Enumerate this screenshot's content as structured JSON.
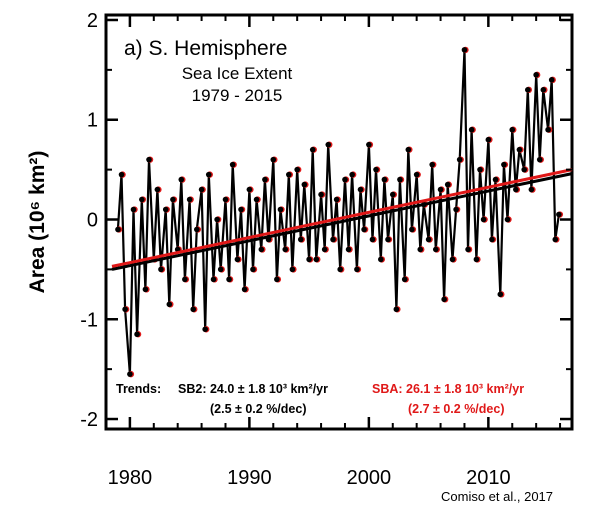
{
  "chart_data": {
    "type": "line",
    "panel_label": "a) S. Hemisphere",
    "title_line1": "Sea Ice Extent",
    "title_line2": "1979 - 2015",
    "ylabel": "Area (10⁶ km²)",
    "xlim": [
      1978,
      2017
    ],
    "ylim": [
      -2.1,
      2.05
    ],
    "x_ticks": [
      1980,
      1990,
      2000,
      2010
    ],
    "y_ticks": [
      2,
      1,
      0,
      -1,
      -2
    ],
    "colors": {
      "sb2": "#000000",
      "sba": "#e01818"
    },
    "series": [
      {
        "name": "SB2",
        "color": "#000000",
        "trend_line": {
          "x": [
            1978.5,
            2017.0
          ],
          "y": [
            -0.5,
            0.46
          ]
        },
        "trend_label": "SB2: 24.0 ± 1.8 10³ km²/yr",
        "trend_pct": "(2.5 ± 0.2 %/dec)"
      },
      {
        "name": "SBA",
        "color": "#e01818",
        "trend_line": {
          "x": [
            1978.5,
            2017.0
          ],
          "y": [
            -0.47,
            0.5
          ]
        },
        "trend_label": "SBA: 26.1 ± 1.8 10³ km²/yr",
        "trend_pct": "(2.7 ± 0.2 %/dec)"
      }
    ],
    "trends_heading": "Trends:",
    "anomalies_sample": {
      "x": [
        1979.0,
        1979.3,
        1979.6,
        1980.0,
        1980.3,
        1980.6,
        1981.0,
        1981.3,
        1981.6,
        1982.0,
        1982.3,
        1982.6,
        1983.0,
        1983.3,
        1983.6,
        1984.0,
        1984.3,
        1984.6,
        1985.0,
        1985.3,
        1985.6,
        1986.0,
        1986.3,
        1986.6,
        1987.0,
        1987.3,
        1987.6,
        1988.0,
        1988.3,
        1988.6,
        1989.0,
        1989.3,
        1989.6,
        1990.0,
        1990.3,
        1990.6,
        1991.0,
        1991.3,
        1991.6,
        1992.0,
        1992.3,
        1992.6,
        1993.0,
        1993.3,
        1993.6,
        1994.0,
        1994.3,
        1994.6,
        1995.0,
        1995.3,
        1995.6,
        1996.0,
        1996.3,
        1996.6,
        1997.0,
        1997.3,
        1997.6,
        1998.0,
        1998.3,
        1998.6,
        1999.0,
        1999.3,
        1999.6,
        2000.0,
        2000.3,
        2000.6,
        2001.0,
        2001.3,
        2001.6,
        2002.0,
        2002.3,
        2002.6,
        2003.0,
        2003.3,
        2003.6,
        2004.0,
        2004.3,
        2004.6,
        2005.0,
        2005.3,
        2005.6,
        2006.0,
        2006.3,
        2006.6,
        2007.0,
        2007.3,
        2007.6,
        2008.0,
        2008.3,
        2008.6,
        2009.0,
        2009.3,
        2009.6,
        2010.0,
        2010.3,
        2010.6,
        2011.0,
        2011.3,
        2011.6,
        2012.0,
        2012.3,
        2012.6,
        2013.0,
        2013.3,
        2013.6,
        2014.0,
        2014.3,
        2014.6,
        2015.0,
        2015.3,
        2015.6,
        2015.9
      ],
      "y": [
        -0.1,
        0.45,
        -0.9,
        -1.55,
        0.1,
        -1.15,
        0.2,
        -0.7,
        0.6,
        -0.4,
        0.3,
        -0.5,
        0.1,
        -0.85,
        0.2,
        -0.3,
        0.4,
        -0.6,
        0.2,
        -0.9,
        -0.1,
        0.3,
        -1.1,
        0.45,
        -0.6,
        0.0,
        -0.5,
        0.2,
        -0.6,
        0.55,
        -0.4,
        0.1,
        -0.7,
        0.3,
        -0.5,
        0.2,
        -0.3,
        0.4,
        -0.2,
        0.6,
        -0.6,
        0.1,
        -0.3,
        0.45,
        -0.5,
        0.5,
        -0.2,
        0.35,
        -0.4,
        0.7,
        -0.4,
        0.25,
        -0.3,
        0.75,
        -0.2,
        0.2,
        -0.5,
        0.4,
        -0.3,
        0.45,
        -0.5,
        0.3,
        -0.1,
        0.75,
        -0.2,
        0.5,
        -0.4,
        0.4,
        -0.2,
        0.25,
        -0.9,
        0.4,
        -0.6,
        0.7,
        -0.1,
        0.45,
        -0.3,
        0.15,
        -0.2,
        0.55,
        -0.3,
        0.3,
        -0.8,
        0.35,
        -0.4,
        0.1,
        0.6,
        1.7,
        -0.3,
        0.9,
        -0.4,
        0.5,
        0.0,
        0.8,
        -0.2,
        0.4,
        -0.75,
        0.55,
        0.0,
        0.9,
        0.3,
        0.7,
        0.5,
        1.3,
        0.3,
        1.45,
        0.6,
        1.3,
        0.9,
        1.4,
        -0.2,
        0.05
      ]
    }
  },
  "citation": "Comiso et al., 2017"
}
